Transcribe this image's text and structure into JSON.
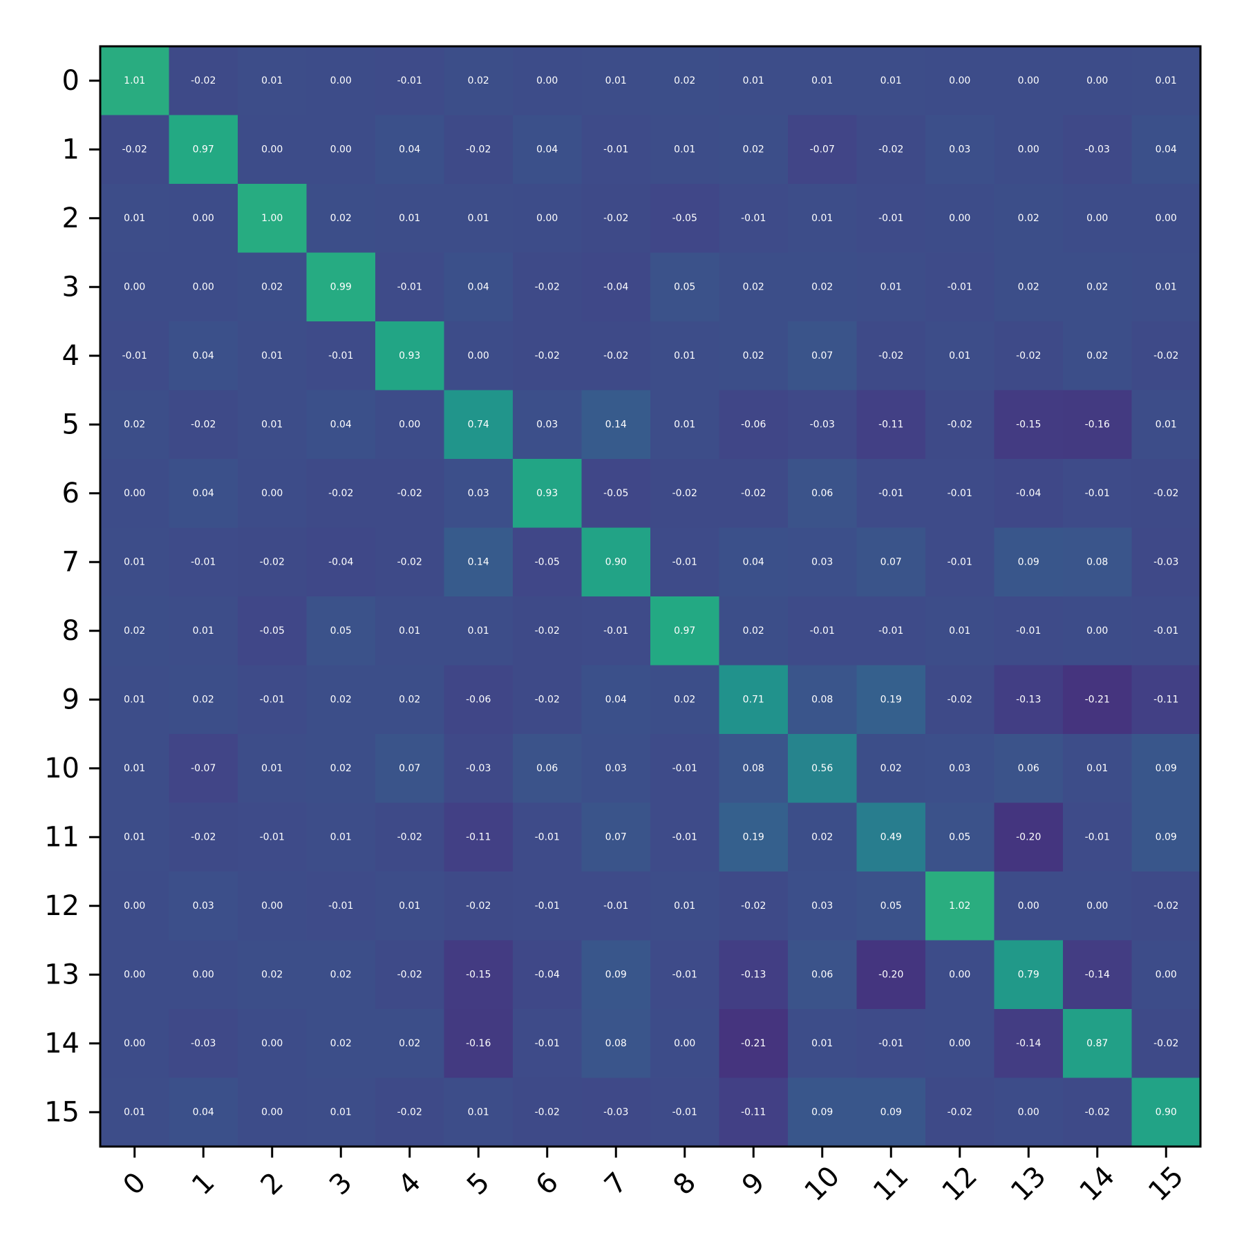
{
  "chart_data": {
    "type": "heatmap",
    "title": "",
    "xlabel": "",
    "ylabel": "",
    "x_tick_labels": [
      "0",
      "1",
      "2",
      "3",
      "4",
      "5",
      "6",
      "7",
      "8",
      "9",
      "10",
      "11",
      "12",
      "13",
      "14",
      "15"
    ],
    "y_tick_labels": [
      "0",
      "1",
      "2",
      "3",
      "4",
      "5",
      "6",
      "7",
      "8",
      "9",
      "10",
      "11",
      "12",
      "13",
      "14",
      "15"
    ],
    "colormap": "viridis",
    "color_range": [
      -0.6,
      2.0
    ],
    "grid": false,
    "legend": "none",
    "values": [
      [
        1.01,
        -0.02,
        0.01,
        -0.0,
        -0.01,
        0.02,
        -0.0,
        0.01,
        0.02,
        0.01,
        0.01,
        0.01,
        -0.0,
        -0.0,
        -0.0,
        0.01
      ],
      [
        -0.02,
        0.97,
        0.0,
        0.0,
        0.04,
        -0.02,
        0.04,
        -0.01,
        0.01,
        0.02,
        -0.07,
        -0.02,
        0.03,
        0.0,
        -0.03,
        0.04
      ],
      [
        0.01,
        0.0,
        1.0,
        0.02,
        0.01,
        0.01,
        -0.0,
        -0.02,
        -0.05,
        -0.01,
        0.01,
        -0.01,
        -0.0,
        0.02,
        -0.0,
        -0.0
      ],
      [
        -0.0,
        0.0,
        0.02,
        0.99,
        -0.01,
        0.04,
        -0.02,
        -0.04,
        0.05,
        0.02,
        0.02,
        0.01,
        -0.01,
        0.02,
        0.02,
        0.01
      ],
      [
        -0.01,
        0.04,
        0.01,
        -0.01,
        0.93,
        0.0,
        -0.02,
        -0.02,
        0.01,
        0.02,
        0.07,
        -0.02,
        0.01,
        -0.02,
        0.02,
        -0.02
      ],
      [
        0.02,
        -0.02,
        0.01,
        0.04,
        0.0,
        0.74,
        0.03,
        0.14,
        0.01,
        -0.06,
        -0.03,
        -0.11,
        -0.02,
        -0.15,
        -0.16,
        0.01
      ],
      [
        -0.0,
        0.04,
        -0.0,
        -0.02,
        -0.02,
        0.03,
        0.93,
        -0.05,
        -0.02,
        -0.02,
        0.06,
        -0.01,
        -0.01,
        -0.04,
        -0.01,
        -0.02
      ],
      [
        0.01,
        -0.01,
        -0.02,
        -0.04,
        -0.02,
        0.14,
        -0.05,
        0.9,
        -0.01,
        0.04,
        0.03,
        0.07,
        -0.01,
        0.09,
        0.08,
        -0.03
      ],
      [
        0.02,
        0.01,
        -0.05,
        0.05,
        0.01,
        0.01,
        -0.02,
        -0.01,
        0.97,
        0.02,
        -0.01,
        -0.01,
        0.01,
        -0.01,
        0.0,
        -0.01
      ],
      [
        0.01,
        0.02,
        -0.01,
        0.02,
        0.02,
        -0.06,
        -0.02,
        0.04,
        0.02,
        0.71,
        0.08,
        0.19,
        -0.02,
        -0.13,
        -0.21,
        -0.11
      ],
      [
        0.01,
        -0.07,
        0.01,
        0.02,
        0.07,
        -0.03,
        0.06,
        0.03,
        -0.01,
        0.08,
        0.56,
        0.02,
        0.03,
        0.06,
        0.01,
        0.09
      ],
      [
        0.01,
        -0.02,
        -0.01,
        0.01,
        -0.02,
        -0.11,
        -0.01,
        0.07,
        -0.01,
        0.19,
        0.02,
        0.49,
        0.05,
        -0.2,
        -0.01,
        0.09
      ],
      [
        -0.0,
        0.03,
        -0.0,
        -0.01,
        0.01,
        -0.02,
        -0.01,
        -0.01,
        0.01,
        -0.02,
        0.03,
        0.05,
        1.02,
        -0.0,
        0.0,
        -0.02
      ],
      [
        -0.0,
        0.0,
        0.02,
        0.02,
        -0.02,
        -0.15,
        -0.04,
        0.09,
        -0.01,
        -0.13,
        0.06,
        -0.2,
        -0.0,
        0.79,
        -0.14,
        0.0
      ],
      [
        -0.0,
        -0.03,
        -0.0,
        0.02,
        0.02,
        -0.16,
        -0.01,
        0.08,
        0.0,
        -0.21,
        0.01,
        -0.01,
        0.0,
        -0.14,
        0.87,
        -0.02
      ],
      [
        0.01,
        0.04,
        -0.0,
        0.01,
        -0.02,
        0.01,
        -0.02,
        -0.03,
        -0.01,
        -0.11,
        0.09,
        0.09,
        -0.02,
        0.0,
        -0.02,
        0.9
      ]
    ]
  }
}
